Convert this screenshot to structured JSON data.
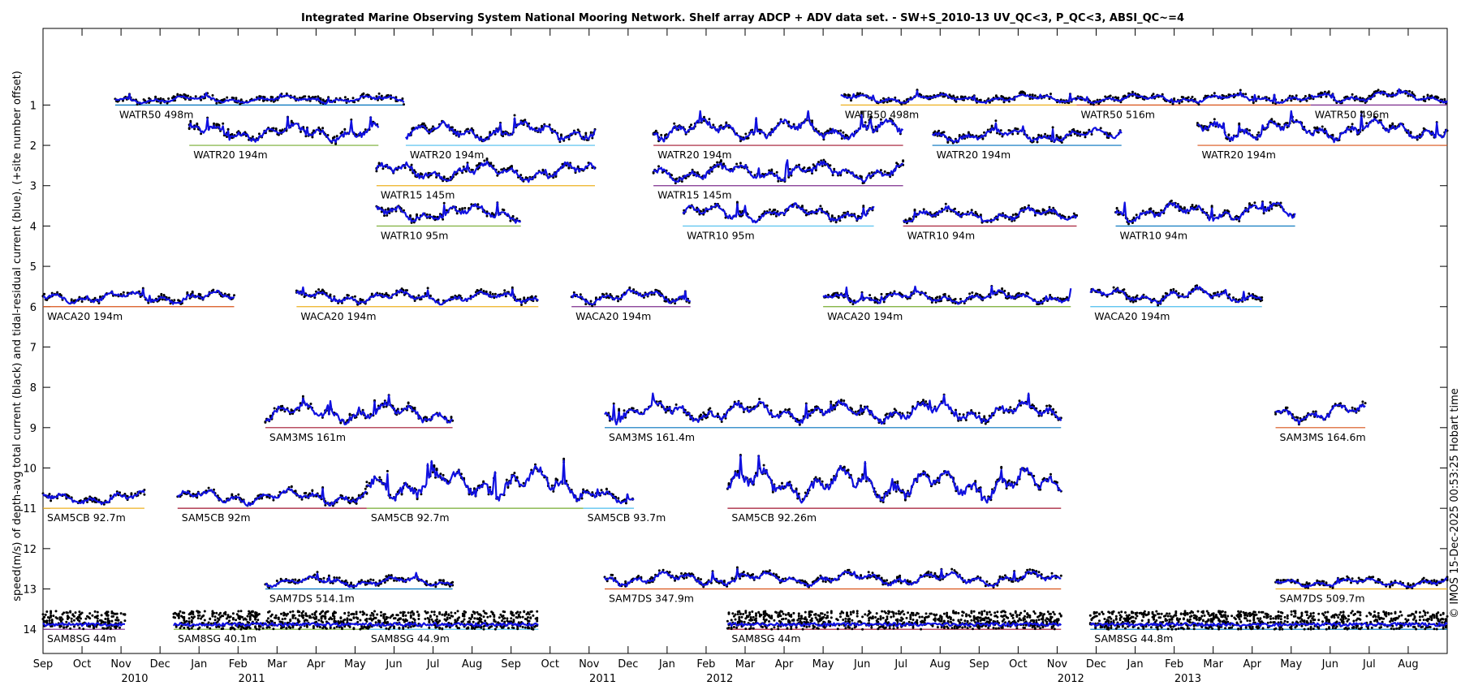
{
  "chart_data": {
    "type": "line",
    "title": "Integrated Marine Observing System National Mooring Network. Shelf array ADCP + ADV data set. - SW+S_2010-13 UV_QC<3, P_QC<3, ABSI_QC~=4",
    "ylabel": "speed(m/s) of depth-avg total current (black) and tidal-residual current (blue). (+site number offset)",
    "copyright": "© IMOS 15-Dec-2025 00:53:25 Hobart time",
    "xlim": [
      0,
      36
    ],
    "ylim": [
      14.6,
      -0.9
    ],
    "y_ticks": [
      1,
      2,
      3,
      4,
      5,
      6,
      7,
      8,
      9,
      10,
      11,
      12,
      13,
      14
    ],
    "month_ticks": [
      {
        "label": "Sep",
        "t": 0
      },
      {
        "label": "Oct",
        "t": 1
      },
      {
        "label": "Nov",
        "t": 2
      },
      {
        "label": "Dec",
        "t": 3
      },
      {
        "label": "Jan",
        "t": 4
      },
      {
        "label": "Feb",
        "t": 5
      },
      {
        "label": "Mar",
        "t": 6
      },
      {
        "label": "Apr",
        "t": 7
      },
      {
        "label": "May",
        "t": 8
      },
      {
        "label": "Jun",
        "t": 9
      },
      {
        "label": "Jul",
        "t": 10
      },
      {
        "label": "Aug",
        "t": 11
      },
      {
        "label": "Sep",
        "t": 12
      },
      {
        "label": "Oct",
        "t": 13
      },
      {
        "label": "Nov",
        "t": 14
      },
      {
        "label": "Dec",
        "t": 15
      },
      {
        "label": "Jan",
        "t": 16
      },
      {
        "label": "Feb",
        "t": 17
      },
      {
        "label": "Mar",
        "t": 18
      },
      {
        "label": "Apr",
        "t": 19
      },
      {
        "label": "May",
        "t": 20
      },
      {
        "label": "Jun",
        "t": 21
      },
      {
        "label": "Jul",
        "t": 22
      },
      {
        "label": "Aug",
        "t": 23
      },
      {
        "label": "Sep",
        "t": 24
      },
      {
        "label": "Oct",
        "t": 25
      },
      {
        "label": "Nov",
        "t": 26
      },
      {
        "label": "Dec",
        "t": 27
      },
      {
        "label": "Jan",
        "t": 28
      },
      {
        "label": "Feb",
        "t": 29
      },
      {
        "label": "Mar",
        "t": 30
      },
      {
        "label": "Apr",
        "t": 31
      },
      {
        "label": "May",
        "t": 32
      },
      {
        "label": "Jun",
        "t": 33
      },
      {
        "label": "Jul",
        "t": 34
      },
      {
        "label": "Aug",
        "t": 35
      }
    ],
    "year_ticks": [
      {
        "label": "2010",
        "t": 2.35
      },
      {
        "label": "2011",
        "t": 5.35
      },
      {
        "label": "2011",
        "t": 14.35
      },
      {
        "label": "2012",
        "t": 17.35
      },
      {
        "label": "2012",
        "t": 26.35
      },
      {
        "label": "2013",
        "t": 29.35
      }
    ],
    "deployments": [
      {
        "site": "WATR50",
        "depth_label": "WATR50 498m",
        "offset": 1,
        "start": 1.85,
        "end": 9.25,
        "amp": 0.3,
        "color": "#0072bd"
      },
      {
        "site": "WATR50",
        "depth_label": "WATR50 498m",
        "offset": 1,
        "start": 20.45,
        "end": 26.5,
        "amp": 0.35,
        "color": "#edb120"
      },
      {
        "site": "WATR50",
        "depth_label": "WATR50 516m",
        "offset": 1,
        "start": 26.5,
        "end": 32.5,
        "amp": 0.35,
        "color": "#d95319"
      },
      {
        "site": "WATR50",
        "depth_label": "WATR50 496m",
        "offset": 1,
        "start": 32.5,
        "end": 36,
        "amp": 0.45,
        "color": "#7e2f8e"
      },
      {
        "site": "WATR20",
        "depth_label": "WATR20 194m",
        "offset": 2,
        "start": 3.75,
        "end": 8.6,
        "amp": 0.7,
        "color": "#77ac30"
      },
      {
        "site": "WATR20",
        "depth_label": "WATR20 194m",
        "offset": 2,
        "start": 9.3,
        "end": 14.15,
        "amp": 0.75,
        "color": "#4dbeee"
      },
      {
        "site": "WATR20",
        "depth_label": "WATR20 194m",
        "offset": 2,
        "start": 15.65,
        "end": 22.05,
        "amp": 0.85,
        "color": "#a2142f"
      },
      {
        "site": "WATR20",
        "depth_label": "WATR20 194m",
        "offset": 2,
        "start": 22.8,
        "end": 27.65,
        "amp": 0.55,
        "color": "#0072bd"
      },
      {
        "site": "WATR20",
        "depth_label": "WATR20 194m",
        "offset": 2,
        "start": 29.6,
        "end": 36,
        "amp": 0.85,
        "color": "#d95319"
      },
      {
        "site": "WATR15",
        "depth_label": "WATR15 145m",
        "offset": 3,
        "start": 8.55,
        "end": 14.15,
        "amp": 0.75,
        "color": "#edb120"
      },
      {
        "site": "WATR15",
        "depth_label": "WATR15 145m",
        "offset": 3,
        "start": 15.65,
        "end": 22.05,
        "amp": 0.75,
        "color": "#7e2f8e"
      },
      {
        "site": "WATR10",
        "depth_label": "WATR10 95m",
        "offset": 4,
        "start": 8.55,
        "end": 12.25,
        "amp": 0.7,
        "color": "#77ac30"
      },
      {
        "site": "WATR10",
        "depth_label": "WATR10 95m",
        "offset": 4,
        "start": 16.4,
        "end": 21.3,
        "amp": 0.7,
        "color": "#4dbeee"
      },
      {
        "site": "WATR10",
        "depth_label": "WATR10 94m",
        "offset": 4,
        "start": 22.05,
        "end": 26.5,
        "amp": 0.6,
        "color": "#a2142f"
      },
      {
        "site": "WATR10",
        "depth_label": "WATR10 94m",
        "offset": 4,
        "start": 27.5,
        "end": 32.1,
        "amp": 0.75,
        "color": "#0072bd"
      },
      {
        "site": "WACA20",
        "depth_label": "WACA20 194m",
        "offset": 6,
        "start": 0,
        "end": 4.9,
        "amp": 0.5,
        "color": "#d95319"
      },
      {
        "site": "WACA20",
        "depth_label": "WACA20 194m",
        "offset": 6,
        "start": 6.5,
        "end": 12.7,
        "amp": 0.5,
        "color": "#edb120"
      },
      {
        "site": "WACA20",
        "depth_label": "WACA20 194m",
        "offset": 6,
        "start": 13.55,
        "end": 16.6,
        "amp": 0.55,
        "color": "#7e2f8e"
      },
      {
        "site": "WACA20",
        "depth_label": "WACA20 194m",
        "offset": 6,
        "start": 20.0,
        "end": 26.35,
        "amp": 0.5,
        "color": "#77ac30"
      },
      {
        "site": "WACA20",
        "depth_label": "WACA20 194m",
        "offset": 6,
        "start": 26.85,
        "end": 31.25,
        "amp": 0.6,
        "color": "#4dbeee"
      },
      {
        "site": "SAM3MS",
        "depth_label": "SAM3MS 161m",
        "offset": 9,
        "start": 5.7,
        "end": 10.5,
        "amp": 0.8,
        "color": "#a2142f"
      },
      {
        "site": "SAM3MS",
        "depth_label": "SAM3MS 161.4m",
        "offset": 9,
        "start": 14.4,
        "end": 26.1,
        "amp": 0.85,
        "color": "#0072bd"
      },
      {
        "site": "SAM3MS",
        "depth_label": "SAM3MS 164.6m",
        "offset": 9,
        "start": 31.6,
        "end": 33.9,
        "amp": 0.8,
        "color": "#d95319"
      },
      {
        "site": "SAM5CB",
        "depth_label": "SAM5CB 92.7m",
        "offset": 11,
        "start": 0,
        "end": 2.6,
        "amp": 0.55,
        "color": "#edb120"
      },
      {
        "site": "SAM5CB",
        "depth_label": "SAM5CB 92m",
        "offset": 11,
        "start": 3.45,
        "end": 8.3,
        "amp": 0.6,
        "color": "#a2142f"
      },
      {
        "site": "SAM5CB",
        "depth_label": "SAM5CB 92.7m",
        "offset": 11,
        "start": 8.3,
        "end": 13.85,
        "amp": 1.3,
        "color": "#77ac30"
      },
      {
        "site": "SAM5CB",
        "depth_label": "SAM5CB 93.7m",
        "offset": 11,
        "start": 13.85,
        "end": 15.15,
        "amp": 0.6,
        "color": "#4dbeee"
      },
      {
        "site": "SAM5CB",
        "depth_label": "SAM5CB 92.26m",
        "offset": 11,
        "start": 17.55,
        "end": 26.1,
        "amp": 1.3,
        "color": "#a2142f"
      },
      {
        "site": "SAM7DS",
        "depth_label": "SAM7DS 514.1m",
        "offset": 13,
        "start": 5.7,
        "end": 10.5,
        "amp": 0.4,
        "color": "#0072bd"
      },
      {
        "site": "SAM7DS",
        "depth_label": "SAM7DS 347.9m",
        "offset": 13,
        "start": 14.4,
        "end": 26.1,
        "amp": 0.55,
        "color": "#d95319"
      },
      {
        "site": "SAM7DS",
        "depth_label": "SAM7DS 509.7m",
        "offset": 13,
        "start": 31.6,
        "end": 36,
        "amp": 0.35,
        "color": "#edb120"
      },
      {
        "site": "SAM8SG",
        "depth_label": "SAM8SG 44m",
        "offset": 14,
        "start": 0,
        "end": 2.1,
        "amp": 0.45,
        "color": "#7e2f8e"
      },
      {
        "site": "SAM8SG",
        "depth_label": "SAM8SG 40.1m",
        "offset": 14,
        "start": 3.35,
        "end": 8.3,
        "amp": 0.45,
        "color": "#77ac30"
      },
      {
        "site": "SAM8SG",
        "depth_label": "SAM8SG 44.9m",
        "offset": 14,
        "start": 8.3,
        "end": 12.7,
        "amp": 0.45,
        "color": "#4dbeee"
      },
      {
        "site": "SAM8SG",
        "depth_label": "SAM8SG 44m",
        "offset": 14,
        "start": 17.55,
        "end": 26.1,
        "amp": 0.5,
        "color": "#a2142f"
      },
      {
        "site": "SAM8SG",
        "depth_label": "SAM8SG 44.8m",
        "offset": 14,
        "start": 26.85,
        "end": 36,
        "amp": 0.5,
        "color": "#0072bd"
      }
    ]
  }
}
